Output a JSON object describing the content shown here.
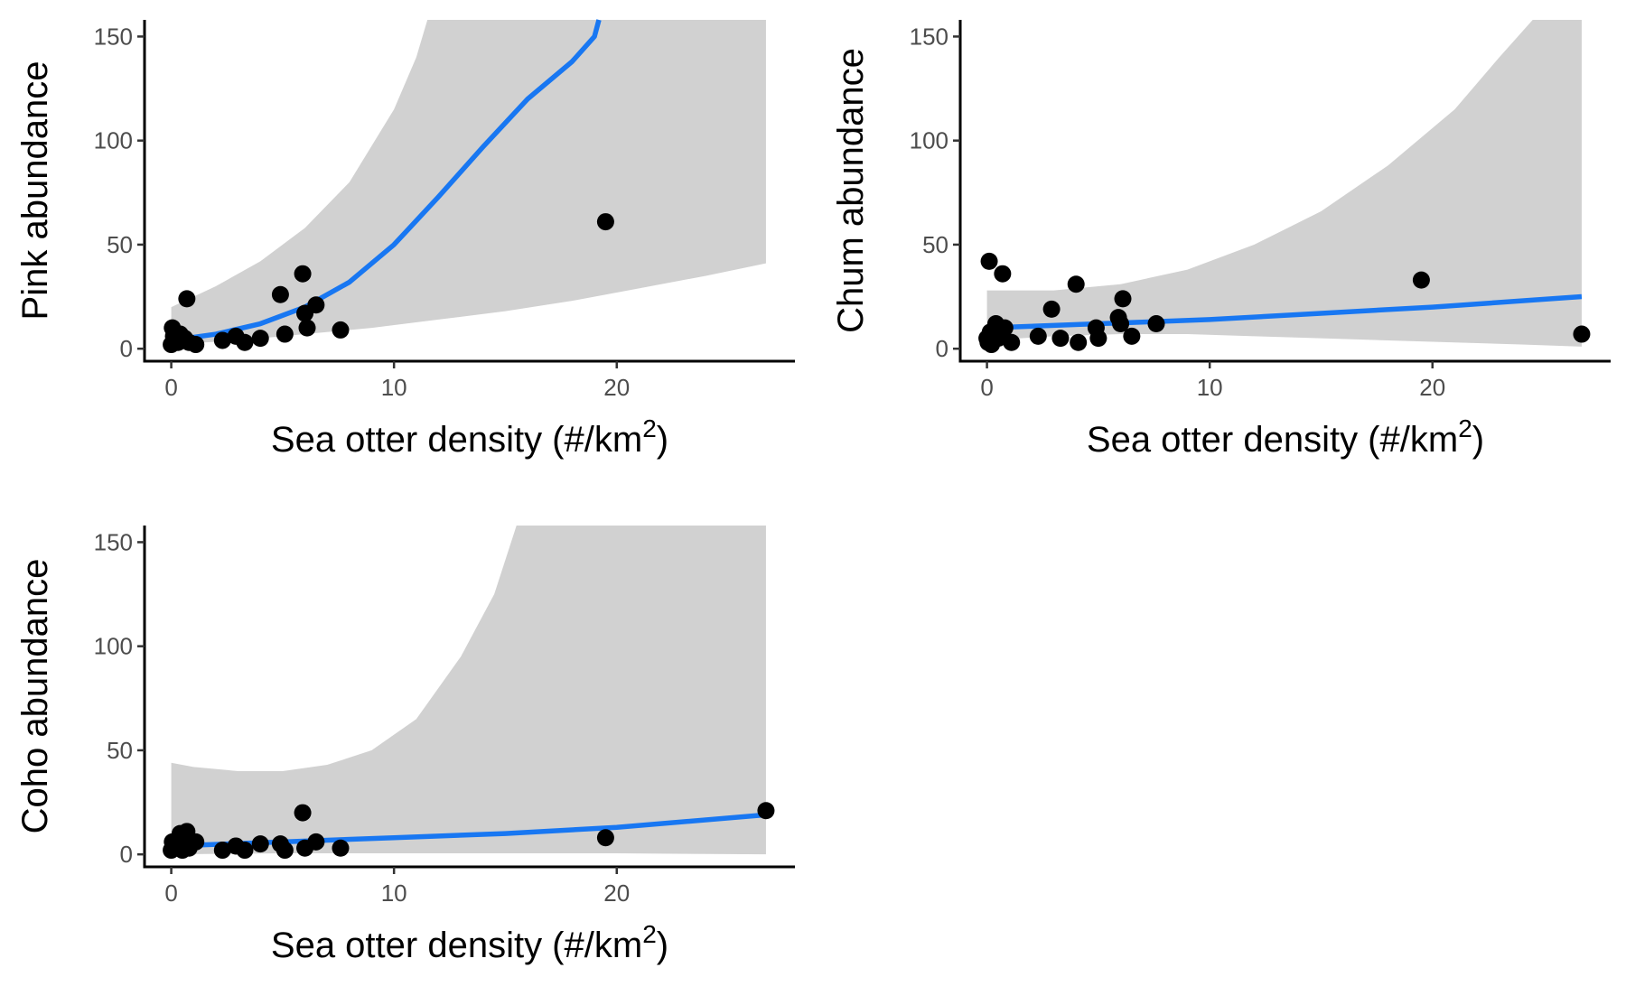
{
  "colors": {
    "ribbon": "#d1d1d1",
    "fit_line": "#1877f2",
    "points": "#000000",
    "axis": "#000000"
  },
  "chart_data": [
    {
      "type": "scatter",
      "panel": "pink",
      "xlabel": "Sea otter density (#/km",
      "xlabel_sup": "2",
      "xlabel_suffix": ")",
      "ylabel": "Pink abundance",
      "xlim": [
        -1.2,
        28
      ],
      "ylim": [
        -6,
        158
      ],
      "x_ticks": [
        "0",
        "10",
        "20"
      ],
      "y_ticks": [
        "0",
        "50",
        "100",
        "150"
      ],
      "points": [
        {
          "x": 0.0,
          "y": 2
        },
        {
          "x": 0.05,
          "y": 10
        },
        {
          "x": 0.1,
          "y": 6
        },
        {
          "x": 0.15,
          "y": 8
        },
        {
          "x": 0.2,
          "y": 4
        },
        {
          "x": 0.3,
          "y": 3
        },
        {
          "x": 0.4,
          "y": 7
        },
        {
          "x": 0.5,
          "y": 4
        },
        {
          "x": 0.6,
          "y": 5
        },
        {
          "x": 0.7,
          "y": 24
        },
        {
          "x": 0.8,
          "y": 3
        },
        {
          "x": 1.1,
          "y": 2
        },
        {
          "x": 2.3,
          "y": 4
        },
        {
          "x": 2.9,
          "y": 6
        },
        {
          "x": 3.3,
          "y": 3
        },
        {
          "x": 4.0,
          "y": 5
        },
        {
          "x": 4.9,
          "y": 26
        },
        {
          "x": 5.1,
          "y": 7
        },
        {
          "x": 5.9,
          "y": 36
        },
        {
          "x": 6.0,
          "y": 17
        },
        {
          "x": 6.1,
          "y": 10
        },
        {
          "x": 6.5,
          "y": 21
        },
        {
          "x": 7.6,
          "y": 9
        },
        {
          "x": 19.5,
          "y": 61
        }
      ],
      "fit": {
        "x": [
          0,
          2,
          4,
          6,
          8,
          10,
          12,
          14,
          16,
          18,
          19,
          19.2
        ],
        "y": [
          4,
          7,
          12,
          20,
          32,
          50,
          73,
          97,
          120,
          138,
          150,
          158
        ]
      },
      "band_upper": {
        "x": [
          0,
          2,
          4,
          6,
          8,
          10,
          11,
          11.5
        ],
        "y": [
          20,
          30,
          42,
          58,
          80,
          115,
          140,
          158
        ]
      },
      "band_upper_right": {
        "x": [
          26.7
        ],
        "y": [
          158
        ]
      },
      "band_lower": {
        "x": [
          0,
          3,
          6,
          9,
          12,
          15,
          18,
          21,
          24,
          26.7
        ],
        "y": [
          2,
          4,
          7,
          10,
          14,
          18,
          23,
          29,
          35,
          41
        ]
      }
    },
    {
      "type": "scatter",
      "panel": "chum",
      "xlabel": "Sea otter density (#/km",
      "xlabel_sup": "2",
      "xlabel_suffix": ")",
      "ylabel": "Chum abundance",
      "xlim": [
        -1.2,
        28
      ],
      "ylim": [
        -6,
        158
      ],
      "x_ticks": [
        "0",
        "10",
        "20"
      ],
      "y_ticks": [
        "0",
        "50",
        "100",
        "150"
      ],
      "points": [
        {
          "x": 0.0,
          "y": 5
        },
        {
          "x": 0.05,
          "y": 3
        },
        {
          "x": 0.1,
          "y": 42
        },
        {
          "x": 0.15,
          "y": 8
        },
        {
          "x": 0.2,
          "y": 2
        },
        {
          "x": 0.3,
          "y": 6
        },
        {
          "x": 0.4,
          "y": 12
        },
        {
          "x": 0.5,
          "y": 5
        },
        {
          "x": 0.6,
          "y": 9
        },
        {
          "x": 0.7,
          "y": 36
        },
        {
          "x": 0.8,
          "y": 10
        },
        {
          "x": 1.1,
          "y": 3
        },
        {
          "x": 2.3,
          "y": 6
        },
        {
          "x": 2.9,
          "y": 19
        },
        {
          "x": 3.3,
          "y": 5
        },
        {
          "x": 4.0,
          "y": 31
        },
        {
          "x": 4.1,
          "y": 3
        },
        {
          "x": 4.9,
          "y": 10
        },
        {
          "x": 5.0,
          "y": 5
        },
        {
          "x": 5.9,
          "y": 15
        },
        {
          "x": 6.0,
          "y": 12
        },
        {
          "x": 6.1,
          "y": 24
        },
        {
          "x": 6.5,
          "y": 6
        },
        {
          "x": 7.6,
          "y": 12
        },
        {
          "x": 19.5,
          "y": 33
        },
        {
          "x": 26.7,
          "y": 7
        }
      ],
      "fit": {
        "x": [
          0,
          5,
          10,
          15,
          20,
          26.7
        ],
        "y": [
          10,
          12,
          14,
          17,
          20,
          25
        ]
      },
      "band_upper": {
        "x": [
          0,
          3,
          6,
          9,
          12,
          15,
          18,
          21,
          23,
          24.5,
          26.7
        ],
        "y": [
          28,
          28,
          31,
          38,
          50,
          66,
          88,
          115,
          140,
          158,
          158
        ]
      },
      "band_lower": {
        "x": [
          0,
          3,
          6,
          9,
          12,
          15,
          18,
          21,
          24,
          26.7
        ],
        "y": [
          4,
          6,
          7,
          7,
          6,
          5,
          4,
          3,
          2,
          1
        ]
      }
    },
    {
      "type": "scatter",
      "panel": "coho",
      "xlabel": "Sea otter density (#/km",
      "xlabel_sup": "2",
      "xlabel_suffix": ")",
      "ylabel": "Coho abundance",
      "xlim": [
        -1.2,
        28
      ],
      "ylim": [
        -6,
        158
      ],
      "x_ticks": [
        "0",
        "10",
        "20"
      ],
      "y_ticks": [
        "0",
        "50",
        "100",
        "150"
      ],
      "points": [
        {
          "x": 0.0,
          "y": 2
        },
        {
          "x": 0.05,
          "y": 6
        },
        {
          "x": 0.1,
          "y": 4
        },
        {
          "x": 0.2,
          "y": 3
        },
        {
          "x": 0.3,
          "y": 5
        },
        {
          "x": 0.4,
          "y": 10
        },
        {
          "x": 0.5,
          "y": 2
        },
        {
          "x": 0.6,
          "y": 7
        },
        {
          "x": 0.7,
          "y": 11
        },
        {
          "x": 0.8,
          "y": 3
        },
        {
          "x": 1.1,
          "y": 6
        },
        {
          "x": 2.3,
          "y": 2
        },
        {
          "x": 2.9,
          "y": 4
        },
        {
          "x": 3.3,
          "y": 2
        },
        {
          "x": 4.0,
          "y": 5
        },
        {
          "x": 4.9,
          "y": 5
        },
        {
          "x": 5.1,
          "y": 2
        },
        {
          "x": 5.9,
          "y": 20
        },
        {
          "x": 6.0,
          "y": 3
        },
        {
          "x": 6.5,
          "y": 6
        },
        {
          "x": 7.6,
          "y": 3
        },
        {
          "x": 19.5,
          "y": 8
        },
        {
          "x": 26.7,
          "y": 21
        }
      ],
      "fit": {
        "x": [
          0,
          5,
          10,
          15,
          20,
          26.7
        ],
        "y": [
          4,
          6,
          8,
          10,
          13,
          19
        ]
      },
      "band_upper": {
        "x": [
          0,
          1,
          3,
          5,
          7,
          9,
          11,
          13,
          14.5,
          15.5,
          26.7
        ],
        "y": [
          44,
          42,
          40,
          40,
          43,
          50,
          65,
          95,
          125,
          158,
          158
        ]
      },
      "band_lower": {
        "x": [
          0,
          5,
          10,
          15,
          20,
          26.7
        ],
        "y": [
          0,
          0.5,
          0.5,
          0.5,
          0.5,
          0
        ]
      }
    }
  ]
}
